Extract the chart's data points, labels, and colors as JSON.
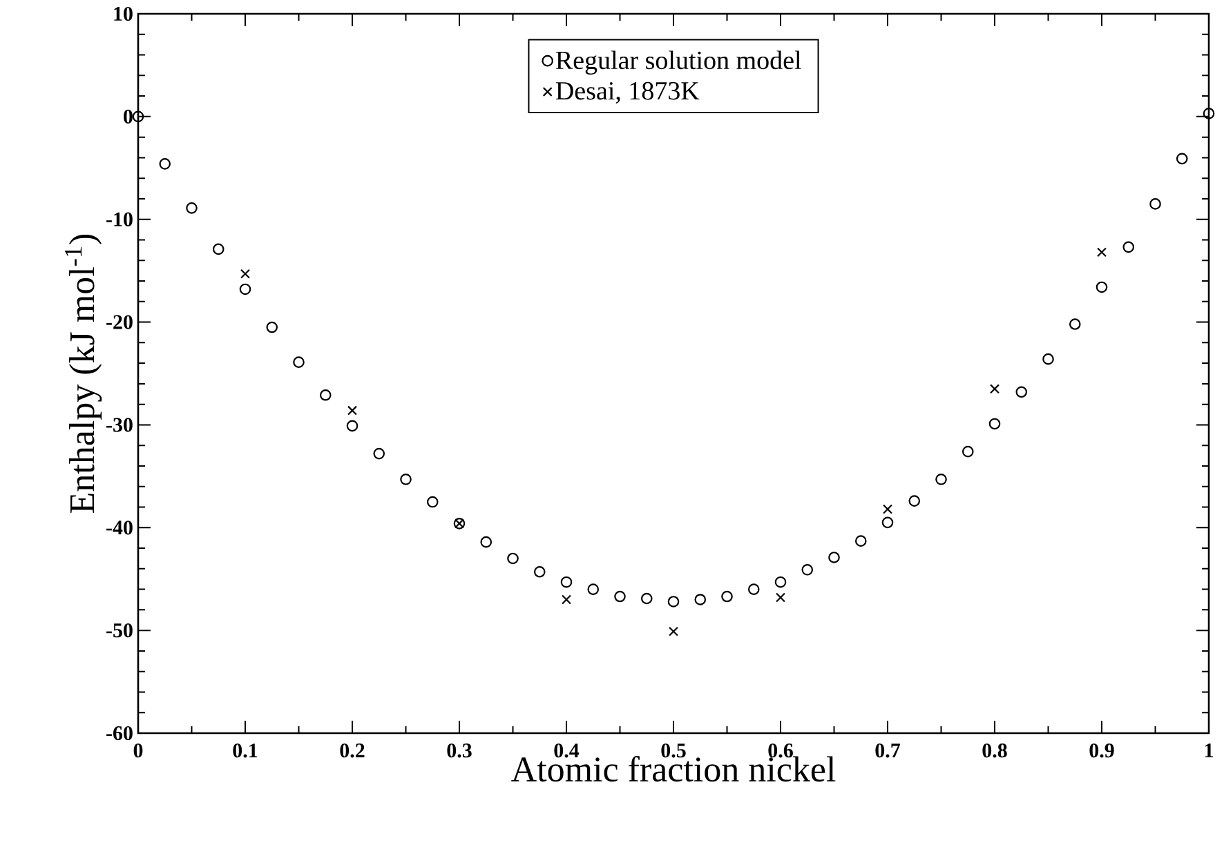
{
  "chart_data": {
    "type": "scatter",
    "xlabel": "Atomic fraction nickel",
    "ylabel": "Enthalpy (kJ mol$^{-1}$)",
    "xlim": [
      0,
      1
    ],
    "ylim": [
      -60,
      10
    ],
    "xticks": [
      0,
      0.1,
      0.2,
      0.3,
      0.4,
      0.5,
      0.6,
      0.7,
      0.8,
      0.9,
      1
    ],
    "yticks": [
      -60,
      -50,
      -40,
      -30,
      -20,
      -10,
      0,
      10
    ],
    "legend": "top",
    "grid": false,
    "series": [
      {
        "name": "Regular solution model",
        "color": "#000000",
        "marker": "circle",
        "x": [
          0,
          0.025,
          0.05,
          0.075,
          0.1,
          0.125,
          0.15,
          0.175,
          0.2,
          0.225,
          0.25,
          0.275,
          0.3,
          0.325,
          0.35,
          0.375,
          0.4,
          0.425,
          0.45,
          0.475,
          0.5,
          0.525,
          0.55,
          0.575,
          0.6,
          0.625,
          0.65,
          0.675,
          0.7,
          0.725,
          0.75,
          0.775,
          0.8,
          0.825,
          0.85,
          0.875,
          0.9,
          0.925,
          0.95,
          0.975,
          1
        ],
        "values": [
          0,
          -4.6,
          -8.9,
          -12.9,
          -16.8,
          -20.5,
          -23.9,
          -27.1,
          -30.1,
          -32.8,
          -35.3,
          -37.5,
          -39.6,
          -41.4,
          -43.0,
          -44.3,
          -45.3,
          -46.0,
          -46.7,
          -46.9,
          -47.2,
          -47.0,
          -46.7,
          -46.0,
          -45.3,
          -44.1,
          -42.9,
          -41.3,
          -39.5,
          -37.4,
          -35.3,
          -32.6,
          -29.9,
          -26.8,
          -23.6,
          -20.2,
          -16.6,
          -12.7,
          -8.5,
          -4.1,
          0.3
        ]
      },
      {
        "name": "Desai, 1873K",
        "color": "#000000",
        "marker": "cross",
        "x": [
          0.1,
          0.2,
          0.3,
          0.4,
          0.5,
          0.6,
          0.7,
          0.8,
          0.9
        ],
        "values": [
          -15.3,
          -28.6,
          -39.6,
          -47.0,
          -50.1,
          -46.8,
          -38.2,
          -26.5,
          -13.2
        ]
      }
    ]
  }
}
